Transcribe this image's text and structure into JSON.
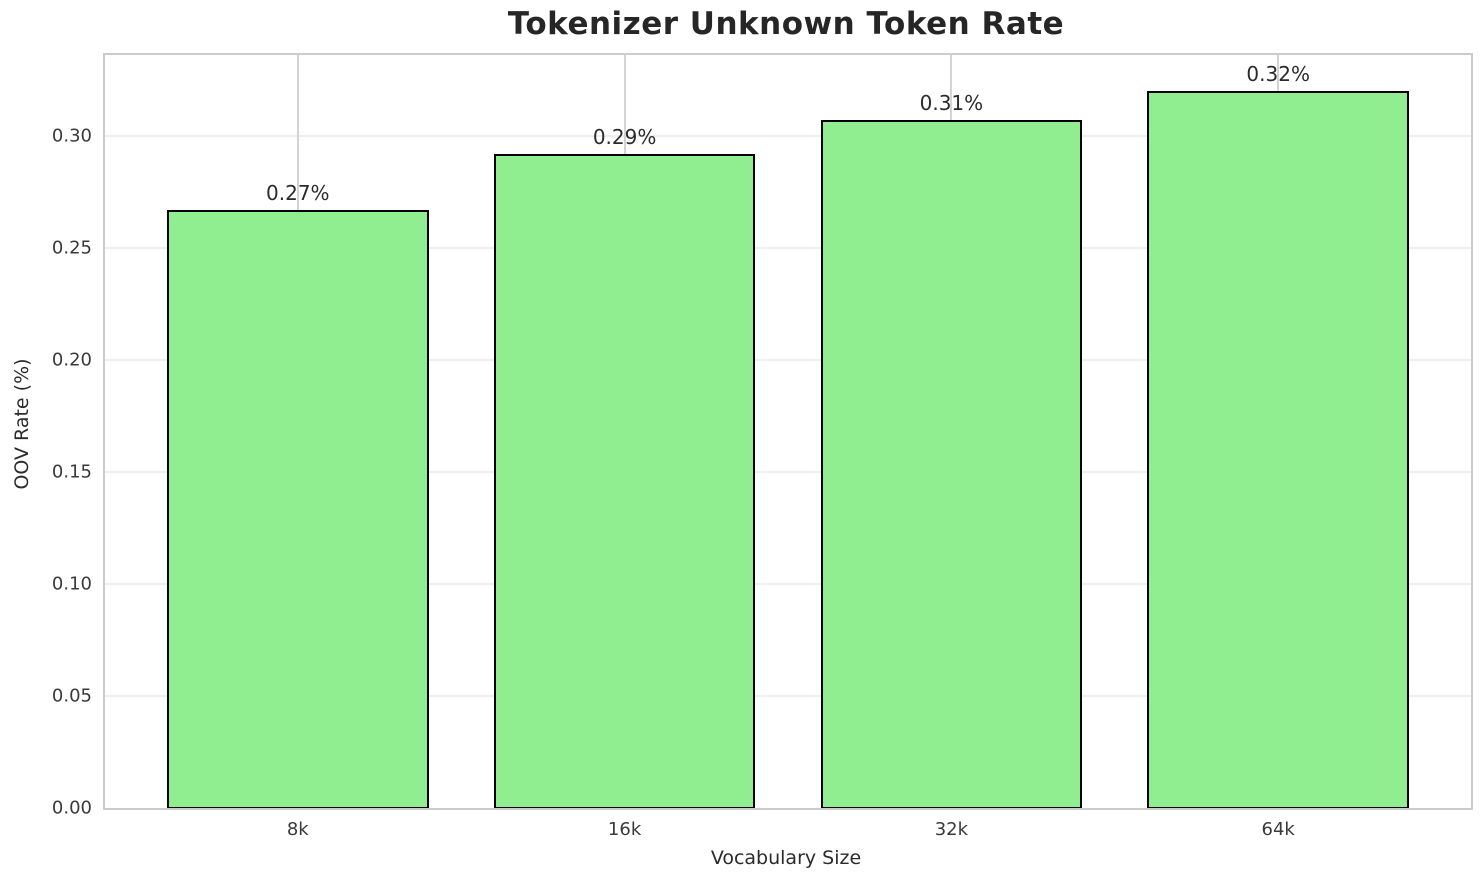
{
  "chart_data": {
    "type": "bar",
    "title": "Tokenizer Unknown Token Rate",
    "xlabel": "Vocabulary Size",
    "ylabel": "OOV Rate (%)",
    "categories": [
      "8k",
      "16k",
      "32k",
      "64k"
    ],
    "values": [
      0.267,
      0.292,
      0.307,
      0.32
    ],
    "bar_labels": [
      "0.27%",
      "0.29%",
      "0.31%",
      "0.32%"
    ],
    "ytick_values": [
      0.0,
      0.05,
      0.1,
      0.15,
      0.2,
      0.25,
      0.3
    ],
    "ytick_labels": [
      "0.00",
      "0.05",
      "0.10",
      "0.15",
      "0.20",
      "0.25",
      "0.30"
    ],
    "ylim": [
      0,
      0.336
    ],
    "grid": true,
    "legend_position": "none",
    "colors": {
      "bar_fill": "#90EE90",
      "bar_edge": "#000000",
      "spine": "#cccccc",
      "hgrid": "#eeeeee",
      "vgrid": "#d4d4d4",
      "text": "#2b2b2b"
    }
  }
}
